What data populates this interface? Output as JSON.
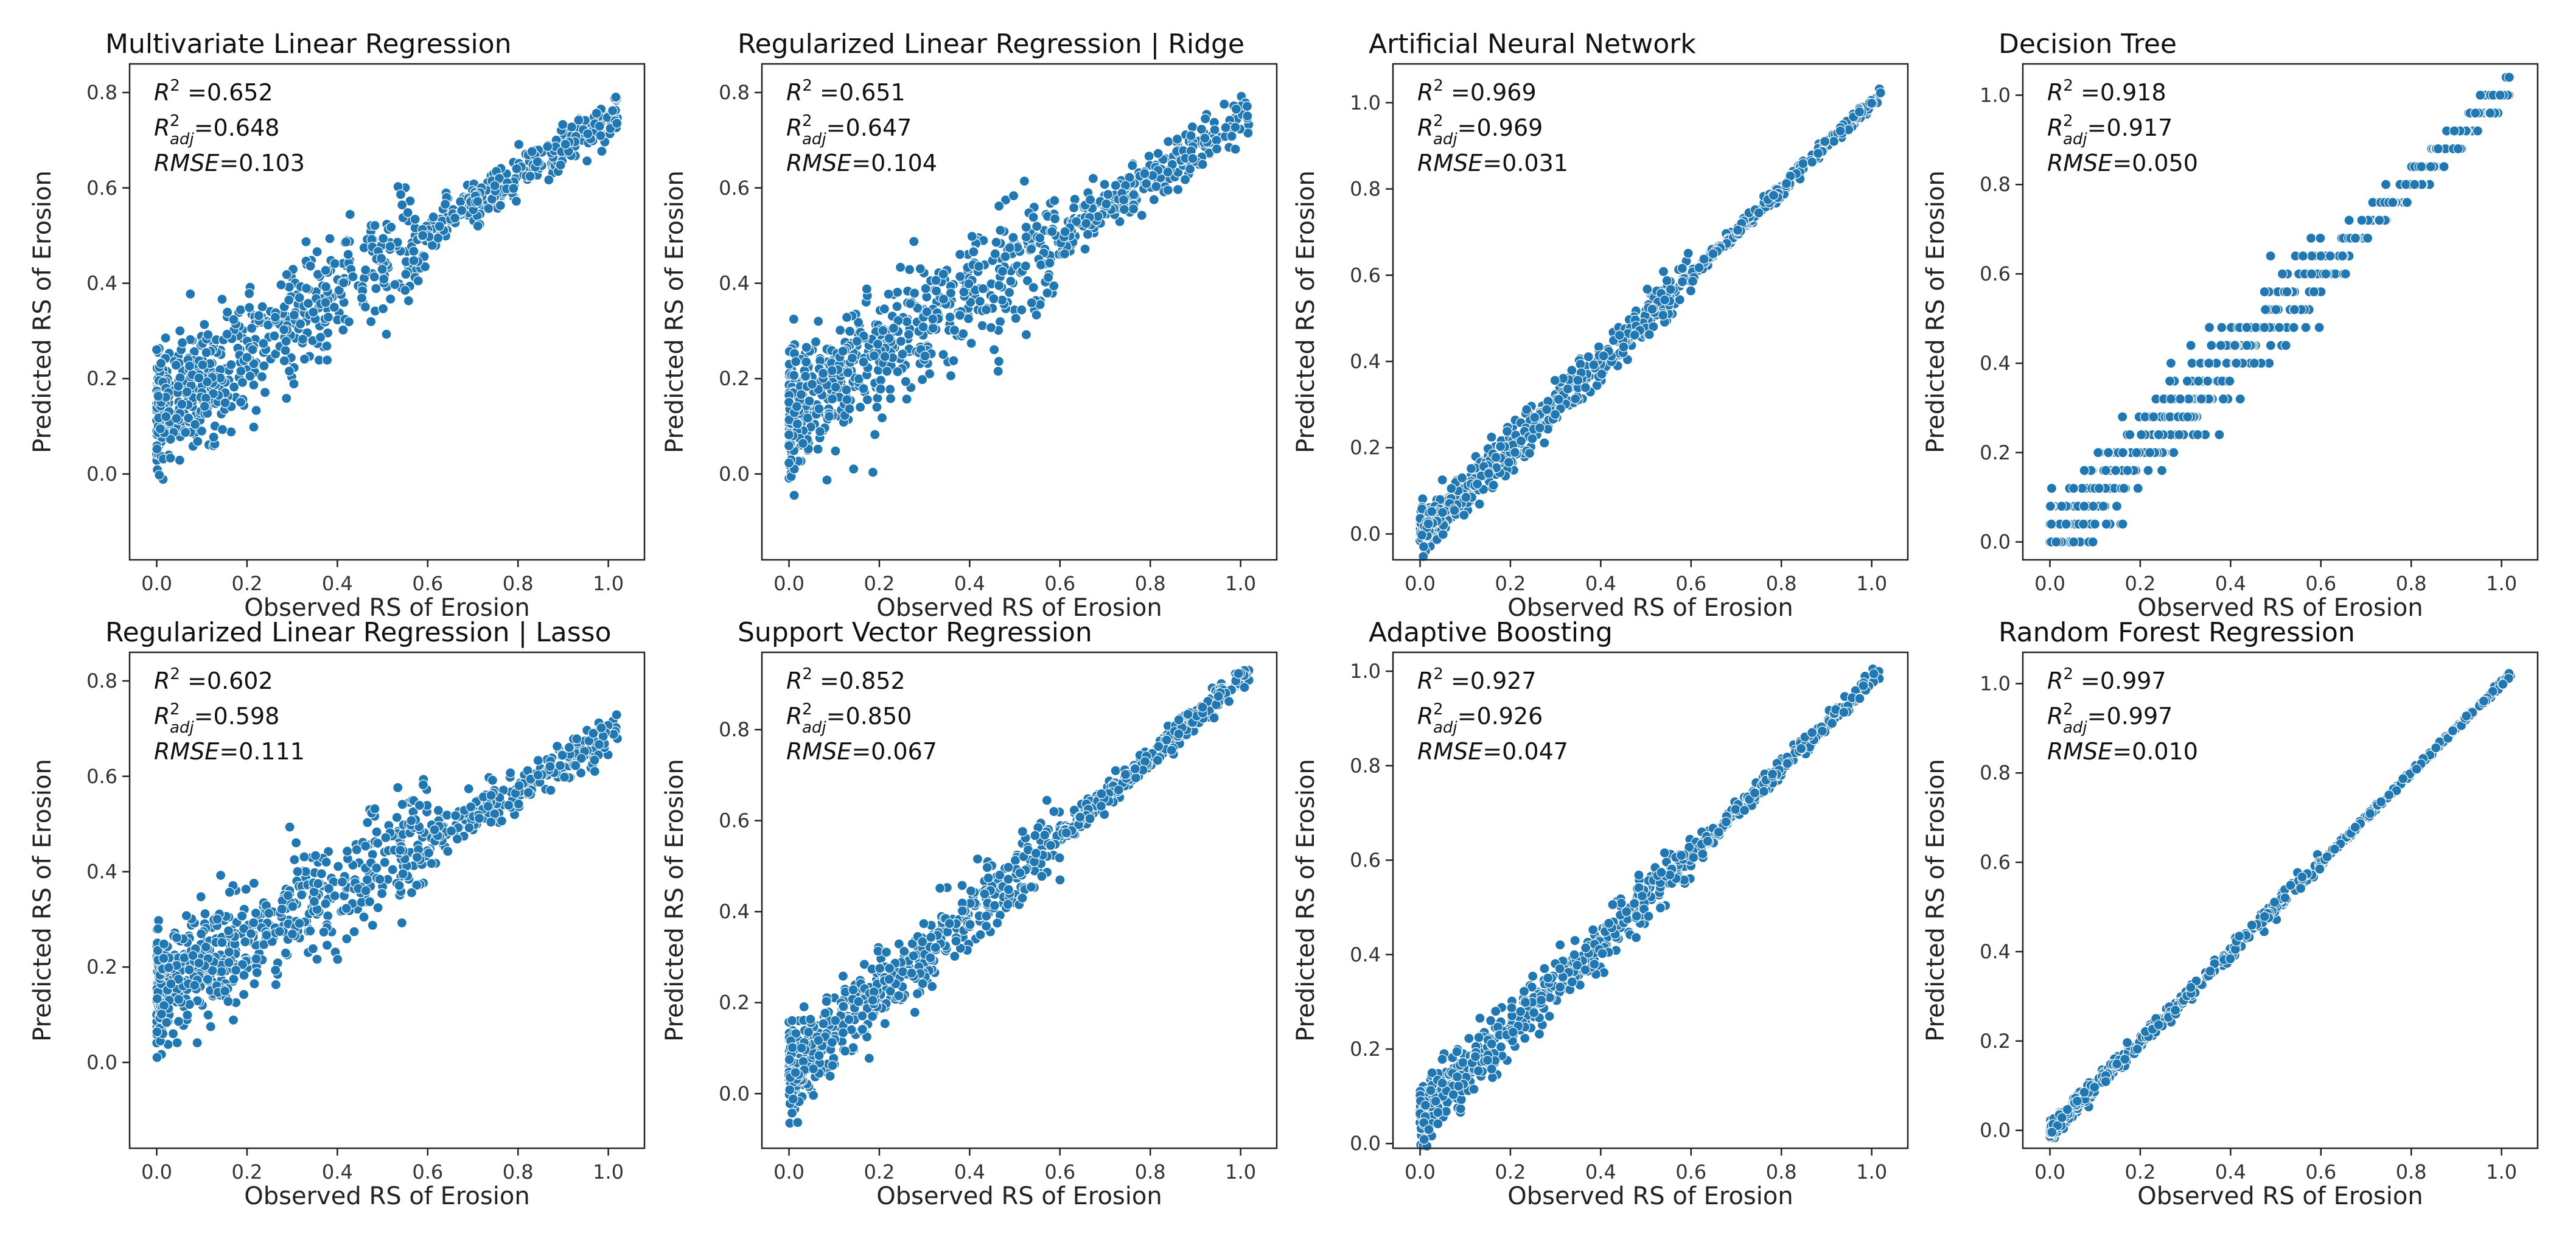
{
  "figure": {
    "point_color": "#1f77b4",
    "point_edge_color": "#ffffff",
    "metric_label_r2": "R",
    "metric_label_r2_sup": "2",
    "metric_label_r2adj": "R",
    "metric_label_r2adj_sup": "2",
    "metric_label_r2adj_sub": "adj",
    "metric_label_rmse": "RMSE"
  },
  "chart_data": [
    {
      "type": "scatter",
      "title": "Multivariate Linear Regression",
      "xlabel": "Observed RS of Erosion",
      "ylabel": "Predicted RS of Erosion",
      "xlim": [
        -0.06,
        1.08
      ],
      "ylim": [
        -0.18,
        0.86
      ],
      "xticks": [
        "0.0",
        "0.2",
        "0.4",
        "0.6",
        "0.8",
        "1.0"
      ],
      "yticks": [
        "0.0",
        "0.2",
        "0.4",
        "0.6",
        "0.8"
      ],
      "metrics": {
        "r2": "0.652",
        "r2_adj": "0.648",
        "rmse": "0.103"
      },
      "pattern": {
        "slope": 0.62,
        "intercept": 0.13,
        "noise": 0.065,
        "xmax": 1.02,
        "n": 900,
        "seed": 11
      }
    },
    {
      "type": "scatter",
      "title": "Regularized Linear Regression | Ridge",
      "xlabel": "Observed RS of Erosion",
      "ylabel": "Predicted RS of Erosion",
      "xlim": [
        -0.06,
        1.08
      ],
      "ylim": [
        -0.18,
        0.86
      ],
      "xticks": [
        "0.0",
        "0.2",
        "0.4",
        "0.6",
        "0.8",
        "1.0"
      ],
      "yticks": [
        "0.0",
        "0.2",
        "0.4",
        "0.6",
        "0.8"
      ],
      "metrics": {
        "r2": "0.651",
        "r2_adj": "0.647",
        "rmse": "0.104"
      },
      "pattern": {
        "slope": 0.61,
        "intercept": 0.13,
        "noise": 0.066,
        "xmax": 1.02,
        "n": 900,
        "seed": 23
      }
    },
    {
      "type": "scatter",
      "title": "Artificial Neural Network",
      "xlabel": "Observed RS of Erosion",
      "ylabel": "Predicted RS of Erosion",
      "xlim": [
        -0.06,
        1.08
      ],
      "ylim": [
        -0.06,
        1.09
      ],
      "xticks": [
        "0.0",
        "0.2",
        "0.4",
        "0.6",
        "0.8",
        "1.0"
      ],
      "yticks": [
        "0.0",
        "0.2",
        "0.4",
        "0.6",
        "0.8",
        "1.0"
      ],
      "metrics": {
        "r2": "0.969",
        "r2_adj": "0.969",
        "rmse": "0.031"
      },
      "pattern": {
        "slope": 1.0,
        "intercept": 0.0,
        "noise": 0.025,
        "xmax": 1.02,
        "n": 800,
        "seed": 37
      }
    },
    {
      "type": "scatter",
      "title": "Decision Tree",
      "xlabel": "Observed RS of Erosion",
      "ylabel": "Predicted RS of Erosion",
      "xlim": [
        -0.06,
        1.08
      ],
      "ylim": [
        -0.04,
        1.07
      ],
      "xticks": [
        "0.0",
        "0.2",
        "0.4",
        "0.6",
        "0.8",
        "1.0"
      ],
      "yticks": [
        "0.0",
        "0.2",
        "0.4",
        "0.6",
        "0.8",
        "1.0"
      ],
      "metrics": {
        "r2": "0.918",
        "r2_adj": "0.917",
        "rmse": "0.050"
      },
      "pattern": {
        "slope": 1.0,
        "intercept": 0.0,
        "noise": 0.045,
        "xmax": 1.02,
        "n": 700,
        "seed": 41,
        "step": 0.04
      }
    },
    {
      "type": "scatter",
      "title": "Regularized Linear Regression | Lasso",
      "xlabel": "Observed RS of Erosion",
      "ylabel": "Predicted RS of Erosion",
      "xlim": [
        -0.06,
        1.08
      ],
      "ylim": [
        -0.18,
        0.86
      ],
      "xticks": [
        "0.0",
        "0.2",
        "0.4",
        "0.6",
        "0.8",
        "1.0"
      ],
      "yticks": [
        "0.0",
        "0.2",
        "0.4",
        "0.6",
        "0.8"
      ],
      "metrics": {
        "r2": "0.602",
        "r2_adj": "0.598",
        "rmse": "0.111"
      },
      "pattern": {
        "slope": 0.53,
        "intercept": 0.15,
        "noise": 0.06,
        "xmax": 1.02,
        "n": 900,
        "seed": 53
      }
    },
    {
      "type": "scatter",
      "title": "Support Vector Regression",
      "xlabel": "Observed RS of Erosion",
      "ylabel": "Predicted RS of Erosion",
      "xlim": [
        -0.06,
        1.08
      ],
      "ylim": [
        -0.12,
        0.97
      ],
      "xticks": [
        "0.0",
        "0.2",
        "0.4",
        "0.6",
        "0.8",
        "1.0"
      ],
      "yticks": [
        "0.0",
        "0.2",
        "0.4",
        "0.6",
        "0.8"
      ],
      "metrics": {
        "r2": "0.852",
        "r2_adj": "0.850",
        "rmse": "0.067"
      },
      "pattern": {
        "slope": 0.86,
        "intercept": 0.05,
        "noise": 0.04,
        "xmax": 1.02,
        "n": 850,
        "seed": 67
      }
    },
    {
      "type": "scatter",
      "title": "Adaptive Boosting",
      "xlabel": "Observed RS of Erosion",
      "ylabel": "Predicted RS of Erosion",
      "xlim": [
        -0.06,
        1.08
      ],
      "ylim": [
        -0.01,
        1.04
      ],
      "xticks": [
        "0.0",
        "0.2",
        "0.4",
        "0.6",
        "0.8",
        "1.0"
      ],
      "yticks": [
        "0.0",
        "0.2",
        "0.4",
        "0.6",
        "0.8",
        "1.0"
      ],
      "metrics": {
        "r2": "0.927",
        "r2_adj": "0.926",
        "rmse": "0.047"
      },
      "pattern": {
        "slope": 0.92,
        "intercept": 0.06,
        "noise": 0.028,
        "xmax": 1.02,
        "n": 800,
        "seed": 71
      }
    },
    {
      "type": "scatter",
      "title": "Random Forest Regression",
      "xlabel": "Observed RS of Erosion",
      "ylabel": "Predicted RS of Erosion",
      "xlim": [
        -0.06,
        1.08
      ],
      "ylim": [
        -0.04,
        1.07
      ],
      "xticks": [
        "0.0",
        "0.2",
        "0.4",
        "0.6",
        "0.8",
        "1.0"
      ],
      "yticks": [
        "0.0",
        "0.2",
        "0.4",
        "0.6",
        "0.8",
        "1.0"
      ],
      "metrics": {
        "r2": "0.997",
        "r2_adj": "0.997",
        "rmse": "0.010"
      },
      "pattern": {
        "slope": 1.0,
        "intercept": 0.0,
        "noise": 0.01,
        "xmax": 1.02,
        "n": 650,
        "seed": 83
      }
    }
  ]
}
